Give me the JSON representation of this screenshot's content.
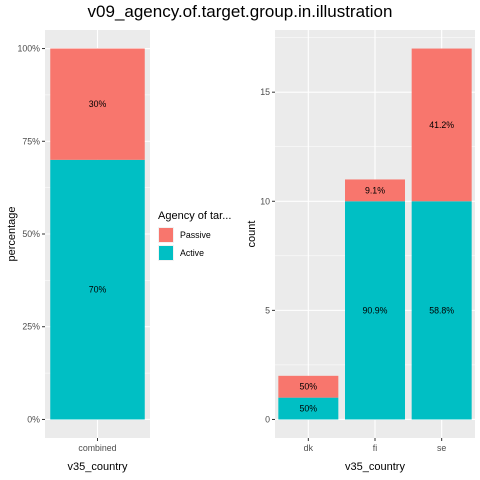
{
  "title": "v09_agency.of.target.group.in.illustration",
  "colors": {
    "Passive": "#F8766D",
    "Active": "#00BFC4",
    "panel": "#EBEBEB",
    "grid": "#FFFFFF"
  },
  "legend": {
    "title": "Agency of tar...",
    "entries": [
      {
        "name": "Passive",
        "color": "#F8766D"
      },
      {
        "name": "Active",
        "color": "#00BFC4"
      }
    ]
  },
  "chart_data": [
    {
      "type": "bar",
      "stacked": true,
      "xlabel": "v35_country",
      "ylabel": "percentage",
      "ylim": [
        0,
        1
      ],
      "yticks": [
        0,
        0.25,
        0.5,
        0.75,
        1
      ],
      "ytick_labels": [
        "0%",
        "25%",
        "50%",
        "75%",
        "100%"
      ],
      "categories": [
        "combined"
      ],
      "series": [
        {
          "name": "Active",
          "values": [
            0.7
          ],
          "labels": [
            "70%"
          ]
        },
        {
          "name": "Passive",
          "values": [
            0.3
          ],
          "labels": [
            "30%"
          ]
        }
      ]
    },
    {
      "type": "bar",
      "stacked": true,
      "xlabel": "v35_country",
      "ylabel": "count",
      "ylim": [
        0,
        17
      ],
      "yticks": [
        0,
        5,
        10,
        15
      ],
      "ytick_labels": [
        "0",
        "5",
        "10",
        "15"
      ],
      "categories": [
        "dk",
        "fi",
        "se"
      ],
      "series": [
        {
          "name": "Active",
          "values": [
            1,
            10,
            10
          ],
          "labels": [
            "50%",
            "90.9%",
            "58.8%"
          ]
        },
        {
          "name": "Passive",
          "values": [
            1,
            1,
            7
          ],
          "labels": [
            "50%",
            "9.1%",
            "41.2%"
          ]
        }
      ]
    }
  ]
}
